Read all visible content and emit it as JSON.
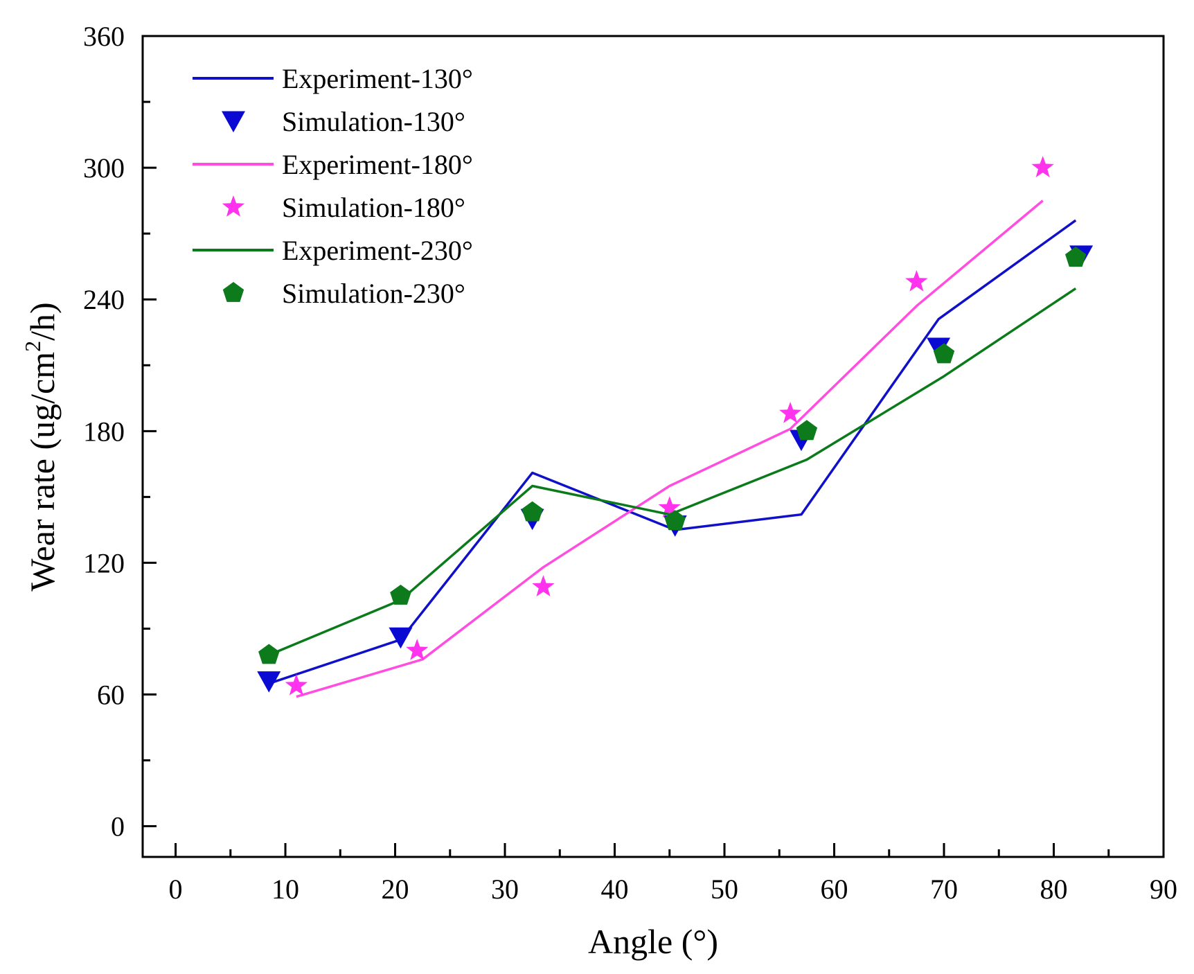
{
  "chart_data": {
    "type": "line",
    "title": "",
    "xlabel": "Angle (°)",
    "ylabel_parts": [
      "Wear rate (ug/cm",
      "2",
      "/h)"
    ],
    "xlim": [
      -3,
      90
    ],
    "ylim": [
      -14,
      360
    ],
    "xticks": [
      0,
      10,
      20,
      30,
      40,
      50,
      60,
      70,
      80,
      90
    ],
    "yticks": [
      0,
      60,
      120,
      180,
      240,
      300,
      360
    ],
    "legend_position": "top-left",
    "grid": false,
    "series": [
      {
        "name": "Experiment-130°",
        "kind": "line",
        "color": "#1010c8",
        "x": [
          8.5,
          20.5,
          32.5,
          45.5,
          57,
          69.5,
          82
        ],
        "y": [
          65,
          85,
          161,
          135,
          142,
          231,
          276
        ]
      },
      {
        "name": "Simulation-130°",
        "kind": "marker",
        "marker": "triangle-down",
        "color": "#0a0ad2",
        "x": [
          8.5,
          20.5,
          32.5,
          45.5,
          57,
          69.5,
          82.5
        ],
        "y": [
          66,
          86,
          140,
          137,
          176,
          218,
          260
        ]
      },
      {
        "name": "Experiment-180°",
        "kind": "line",
        "color": "#ff4de0",
        "x": [
          11,
          22.5,
          33.5,
          45,
          56,
          67.5,
          79
        ],
        "y": [
          59,
          76,
          118,
          155,
          181,
          237,
          285
        ]
      },
      {
        "name": "Simulation-180°",
        "kind": "marker",
        "marker": "star",
        "color": "#ff33ee",
        "x": [
          11,
          22,
          33.5,
          45,
          56,
          67.5,
          79
        ],
        "y": [
          64,
          80,
          109,
          145,
          188,
          248,
          300
        ]
      },
      {
        "name": "Experiment-230°",
        "kind": "line",
        "color": "#0b7a1a",
        "x": [
          8.5,
          20.5,
          32.5,
          45,
          57.5,
          70,
          82
        ],
        "y": [
          78,
          103,
          155,
          142,
          167,
          205,
          245
        ]
      },
      {
        "name": "Simulation-230°",
        "kind": "marker",
        "marker": "pentagon",
        "color": "#0d7a1c",
        "x": [
          8.5,
          20.5,
          32.5,
          45.5,
          57.5,
          70,
          82
        ],
        "y": [
          78,
          105,
          143,
          139,
          180,
          215,
          259
        ]
      }
    ]
  }
}
